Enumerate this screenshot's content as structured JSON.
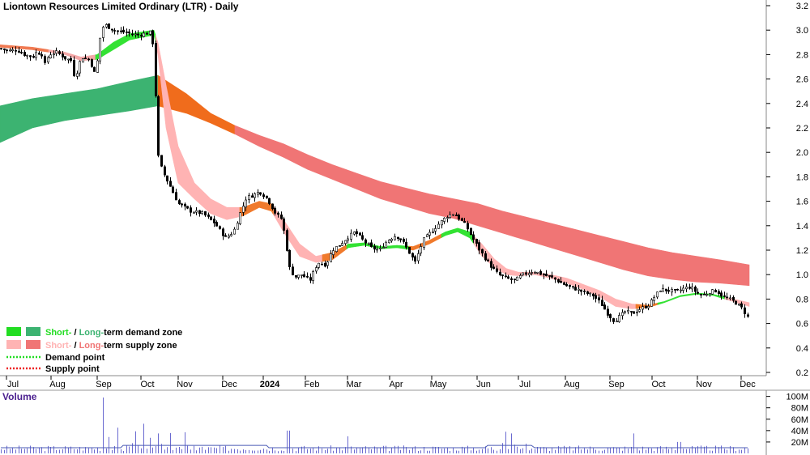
{
  "chart_data": {
    "type": "candlestick",
    "title": "Liontown Resources Limited Ordinary (LTR) - Daily",
    "y_ticks": [
      "3.2",
      "3.0",
      "2.8",
      "2.6",
      "2.4",
      "2.2",
      "2.0",
      "1.8",
      "1.6",
      "1.4",
      "1.2",
      "1.0",
      "0.8",
      "0.6",
      "0.4",
      "0.2"
    ],
    "ylim": [
      0.1,
      3.28
    ],
    "x_ticks": [
      {
        "label": "Jul",
        "bold": false
      },
      {
        "label": "Aug",
        "bold": false
      },
      {
        "label": "Sep",
        "bold": false
      },
      {
        "label": "Oct",
        "bold": false
      },
      {
        "label": "Nov",
        "bold": false
      },
      {
        "label": "Dec",
        "bold": false
      },
      {
        "label": "2024",
        "bold": true
      },
      {
        "label": "Feb",
        "bold": false
      },
      {
        "label": "Mar",
        "bold": false
      },
      {
        "label": "Apr",
        "bold": false
      },
      {
        "label": "May",
        "bold": false
      },
      {
        "label": "Jun",
        "bold": false
      },
      {
        "label": "Jul",
        "bold": false
      },
      {
        "label": "Aug",
        "bold": false
      },
      {
        "label": "Sep",
        "bold": false
      },
      {
        "label": "Oct",
        "bold": false
      },
      {
        "label": "Nov",
        "bold": false
      },
      {
        "label": "Dec",
        "bold": false
      }
    ],
    "price_path": [
      [
        0,
        2.85
      ],
      [
        10,
        2.83
      ],
      [
        20,
        2.84
      ],
      [
        30,
        2.8
      ],
      [
        40,
        2.78
      ],
      [
        45,
        2.82
      ],
      [
        52,
        2.8
      ],
      [
        55,
        2.72
      ],
      [
        60,
        2.8
      ],
      [
        70,
        2.82
      ],
      [
        80,
        2.77
      ],
      [
        88,
        2.75
      ],
      [
        92,
        2.6
      ],
      [
        100,
        2.78
      ],
      [
        110,
        2.76
      ],
      [
        118,
        2.62
      ],
      [
        122,
        2.9
      ],
      [
        128,
        3.05
      ],
      [
        140,
        3.0
      ],
      [
        155,
        2.98
      ],
      [
        170,
        2.96
      ],
      [
        185,
        2.98
      ],
      [
        190,
        2.85
      ],
      [
        194,
        2.0
      ],
      [
        200,
        1.85
      ],
      [
        210,
        1.72
      ],
      [
        220,
        1.58
      ],
      [
        235,
        1.52
      ],
      [
        250,
        1.5
      ],
      [
        265,
        1.42
      ],
      [
        278,
        1.3
      ],
      [
        288,
        1.35
      ],
      [
        296,
        1.5
      ],
      [
        304,
        1.63
      ],
      [
        312,
        1.65
      ],
      [
        320,
        1.68
      ],
      [
        330,
        1.62
      ],
      [
        340,
        1.5
      ],
      [
        348,
        1.45
      ],
      [
        354,
        1.2
      ],
      [
        358,
        1.03
      ],
      [
        365,
        0.98
      ],
      [
        372,
        1.0
      ],
      [
        382,
        0.95
      ],
      [
        392,
        1.1
      ],
      [
        402,
        1.08
      ],
      [
        410,
        1.2
      ],
      [
        420,
        1.25
      ],
      [
        428,
        1.3
      ],
      [
        438,
        1.35
      ],
      [
        448,
        1.28
      ],
      [
        458,
        1.22
      ],
      [
        468,
        1.2
      ],
      [
        478,
        1.28
      ],
      [
        488,
        1.32
      ],
      [
        496,
        1.28
      ],
      [
        505,
        1.18
      ],
      [
        512,
        1.1
      ],
      [
        522,
        1.28
      ],
      [
        532,
        1.35
      ],
      [
        542,
        1.42
      ],
      [
        552,
        1.48
      ],
      [
        560,
        1.5
      ],
      [
        568,
        1.45
      ],
      [
        575,
        1.4
      ],
      [
        583,
        1.3
      ],
      [
        592,
        1.2
      ],
      [
        600,
        1.12
      ],
      [
        608,
        1.05
      ],
      [
        615,
        1.0
      ],
      [
        625,
        0.97
      ],
      [
        635,
        0.95
      ],
      [
        645,
        1.0
      ],
      [
        658,
        1.03
      ],
      [
        670,
        1.0
      ],
      [
        683,
        0.97
      ],
      [
        693,
        0.93
      ],
      [
        702,
        0.9
      ],
      [
        712,
        0.88
      ],
      [
        722,
        0.85
      ],
      [
        732,
        0.83
      ],
      [
        742,
        0.76
      ],
      [
        750,
        0.68
      ],
      [
        758,
        0.62
      ],
      [
        765,
        0.66
      ],
      [
        772,
        0.7
      ],
      [
        780,
        0.68
      ],
      [
        790,
        0.72
      ],
      [
        800,
        0.75
      ],
      [
        808,
        0.82
      ],
      [
        815,
        0.88
      ],
      [
        825,
        0.87
      ],
      [
        835,
        0.86
      ],
      [
        845,
        0.89
      ],
      [
        852,
        0.9
      ],
      [
        860,
        0.85
      ],
      [
        868,
        0.83
      ],
      [
        876,
        0.86
      ],
      [
        884,
        0.87
      ],
      [
        892,
        0.82
      ],
      [
        900,
        0.8
      ],
      [
        908,
        0.77
      ],
      [
        915,
        0.73
      ],
      [
        920,
        0.68
      ],
      [
        924,
        0.64
      ]
    ],
    "short_zone": [
      [
        0,
        2.88,
        2.86
      ],
      [
        40,
        2.86,
        2.84
      ],
      [
        80,
        2.82,
        2.8
      ],
      [
        100,
        2.78,
        2.75
      ],
      [
        120,
        2.8,
        2.76
      ],
      [
        140,
        2.9,
        2.84
      ],
      [
        160,
        2.97,
        2.92
      ],
      [
        190,
        3.0,
        2.96
      ],
      [
        195,
        2.9,
        2.8
      ],
      [
        205,
        2.55,
        2.2
      ],
      [
        220,
        2.05,
        1.75
      ],
      [
        240,
        1.75,
        1.62
      ],
      [
        260,
        1.62,
        1.5
      ],
      [
        280,
        1.55,
        1.45
      ],
      [
        300,
        1.55,
        1.48
      ],
      [
        320,
        1.6,
        1.55
      ],
      [
        335,
        1.58,
        1.52
      ],
      [
        350,
        1.45,
        1.35
      ],
      [
        370,
        1.25,
        1.15
      ],
      [
        390,
        1.15,
        1.1
      ],
      [
        410,
        1.18,
        1.12
      ],
      [
        430,
        1.25,
        1.22
      ],
      [
        450,
        1.26,
        1.24
      ],
      [
        470,
        1.23,
        1.21
      ],
      [
        490,
        1.24,
        1.22
      ],
      [
        510,
        1.23,
        1.2
      ],
      [
        530,
        1.28,
        1.25
      ],
      [
        550,
        1.35,
        1.32
      ],
      [
        565,
        1.38,
        1.35
      ],
      [
        580,
        1.35,
        1.3
      ],
      [
        595,
        1.25,
        1.15
      ],
      [
        610,
        1.13,
        1.06
      ],
      [
        625,
        1.05,
        1.0
      ],
      [
        640,
        1.02,
        0.99
      ],
      [
        660,
        1.02,
        1.0
      ],
      [
        680,
        1.0,
        0.97
      ],
      [
        700,
        0.97,
        0.93
      ],
      [
        720,
        0.92,
        0.88
      ],
      [
        740,
        0.87,
        0.82
      ],
      [
        760,
        0.8,
        0.74
      ],
      [
        780,
        0.76,
        0.72
      ],
      [
        800,
        0.75,
        0.73
      ],
      [
        820,
        0.78,
        0.77
      ],
      [
        840,
        0.83,
        0.82
      ],
      [
        860,
        0.85,
        0.84
      ],
      [
        880,
        0.84,
        0.83
      ],
      [
        900,
        0.81,
        0.79
      ],
      [
        925,
        0.77,
        0.74
      ]
    ],
    "short_zone_colors": [
      {
        "from": 0,
        "to": 60,
        "color": "#f07a52"
      },
      {
        "from": 60,
        "to": 118,
        "color": "#f4a8a8"
      },
      {
        "from": 118,
        "to": 192,
        "color": "#33e233"
      },
      {
        "from": 192,
        "to": 296,
        "color": "#ffb3b3"
      },
      {
        "from": 296,
        "to": 338,
        "color": "#f07a2c"
      },
      {
        "from": 338,
        "to": 398,
        "color": "#ffb3b3"
      },
      {
        "from": 398,
        "to": 428,
        "color": "#f07a2c"
      },
      {
        "from": 428,
        "to": 505,
        "color": "#33e233"
      },
      {
        "from": 505,
        "to": 545,
        "color": "#f07a2c"
      },
      {
        "from": 545,
        "to": 585,
        "color": "#33e233"
      },
      {
        "from": 585,
        "to": 785,
        "color": "#ffb3b3"
      },
      {
        "from": 785,
        "to": 812,
        "color": "#f07a2c"
      },
      {
        "from": 812,
        "to": 895,
        "color": "#33e233"
      },
      {
        "from": 895,
        "to": 926,
        "color": "#ffb3b3"
      }
    ],
    "long_zone": [
      [
        0,
        2.38,
        2.08
      ],
      [
        40,
        2.44,
        2.2
      ],
      [
        80,
        2.48,
        2.26
      ],
      [
        120,
        2.52,
        2.3
      ],
      [
        160,
        2.58,
        2.34
      ],
      [
        195,
        2.63,
        2.38
      ],
      [
        230,
        2.48,
        2.32
      ],
      [
        260,
        2.32,
        2.24
      ],
      [
        290,
        2.22,
        2.15
      ],
      [
        320,
        2.14,
        2.05
      ],
      [
        350,
        2.07,
        1.96
      ],
      [
        380,
        1.98,
        1.86
      ],
      [
        410,
        1.9,
        1.78
      ],
      [
        440,
        1.83,
        1.7
      ],
      [
        470,
        1.76,
        1.62
      ],
      [
        500,
        1.71,
        1.56
      ],
      [
        530,
        1.66,
        1.5
      ],
      [
        560,
        1.62,
        1.46
      ],
      [
        590,
        1.58,
        1.4
      ],
      [
        620,
        1.52,
        1.34
      ],
      [
        650,
        1.47,
        1.28
      ],
      [
        680,
        1.42,
        1.22
      ],
      [
        710,
        1.37,
        1.16
      ],
      [
        740,
        1.32,
        1.1
      ],
      [
        770,
        1.27,
        1.04
      ],
      [
        800,
        1.22,
        0.99
      ],
      [
        830,
        1.18,
        0.96
      ],
      [
        860,
        1.15,
        0.94
      ],
      [
        890,
        1.12,
        0.93
      ],
      [
        925,
        1.08,
        0.91
      ]
    ],
    "long_zone_colors": [
      {
        "from": 0,
        "to": 195,
        "color": "#3cb371"
      },
      {
        "from": 195,
        "to": 290,
        "color": "#f06c1c"
      },
      {
        "from": 290,
        "to": 926,
        "color": "#f07575"
      }
    ],
    "volume": {
      "label": "Volume",
      "ticks": [
        "100M",
        "80M",
        "60M",
        "40M",
        "20M"
      ],
      "max": 108,
      "spikes": [
        [
          128,
          98
        ],
        [
          145,
          45
        ],
        [
          178,
          52
        ],
        [
          196,
          35
        ],
        [
          355,
          40
        ],
        [
          430,
          30
        ],
        [
          624,
          38
        ],
        [
          632,
          35
        ],
        [
          783,
          35
        ],
        [
          838,
          20
        ]
      ]
    }
  },
  "legend": [
    {
      "swatches": [
        "#22dd22",
        "#3cb371"
      ],
      "parts": [
        {
          "text": "Short-",
          "color": "#22dd22"
        },
        {
          "text": " / ",
          "color": "#000000"
        },
        {
          "text": "Long-",
          "color": "#3cb371"
        },
        {
          "text": "term demand zone",
          "color": "#000000"
        }
      ]
    },
    {
      "swatches": [
        "#ffb3b3",
        "#f07575"
      ],
      "parts": [
        {
          "text": "Short-",
          "color": "#ffb3b3"
        },
        {
          "text": " / ",
          "color": "#000000"
        },
        {
          "text": "Long-",
          "color": "#f07575"
        },
        {
          "text": "term supply zone",
          "color": "#000000"
        }
      ]
    },
    {
      "dot_color": "#22dd22",
      "parts": [
        {
          "text": "Demand point",
          "color": "#000000"
        }
      ]
    },
    {
      "dot_color": "#ee2222",
      "parts": [
        {
          "text": "Supply point",
          "color": "#000000"
        }
      ]
    }
  ]
}
